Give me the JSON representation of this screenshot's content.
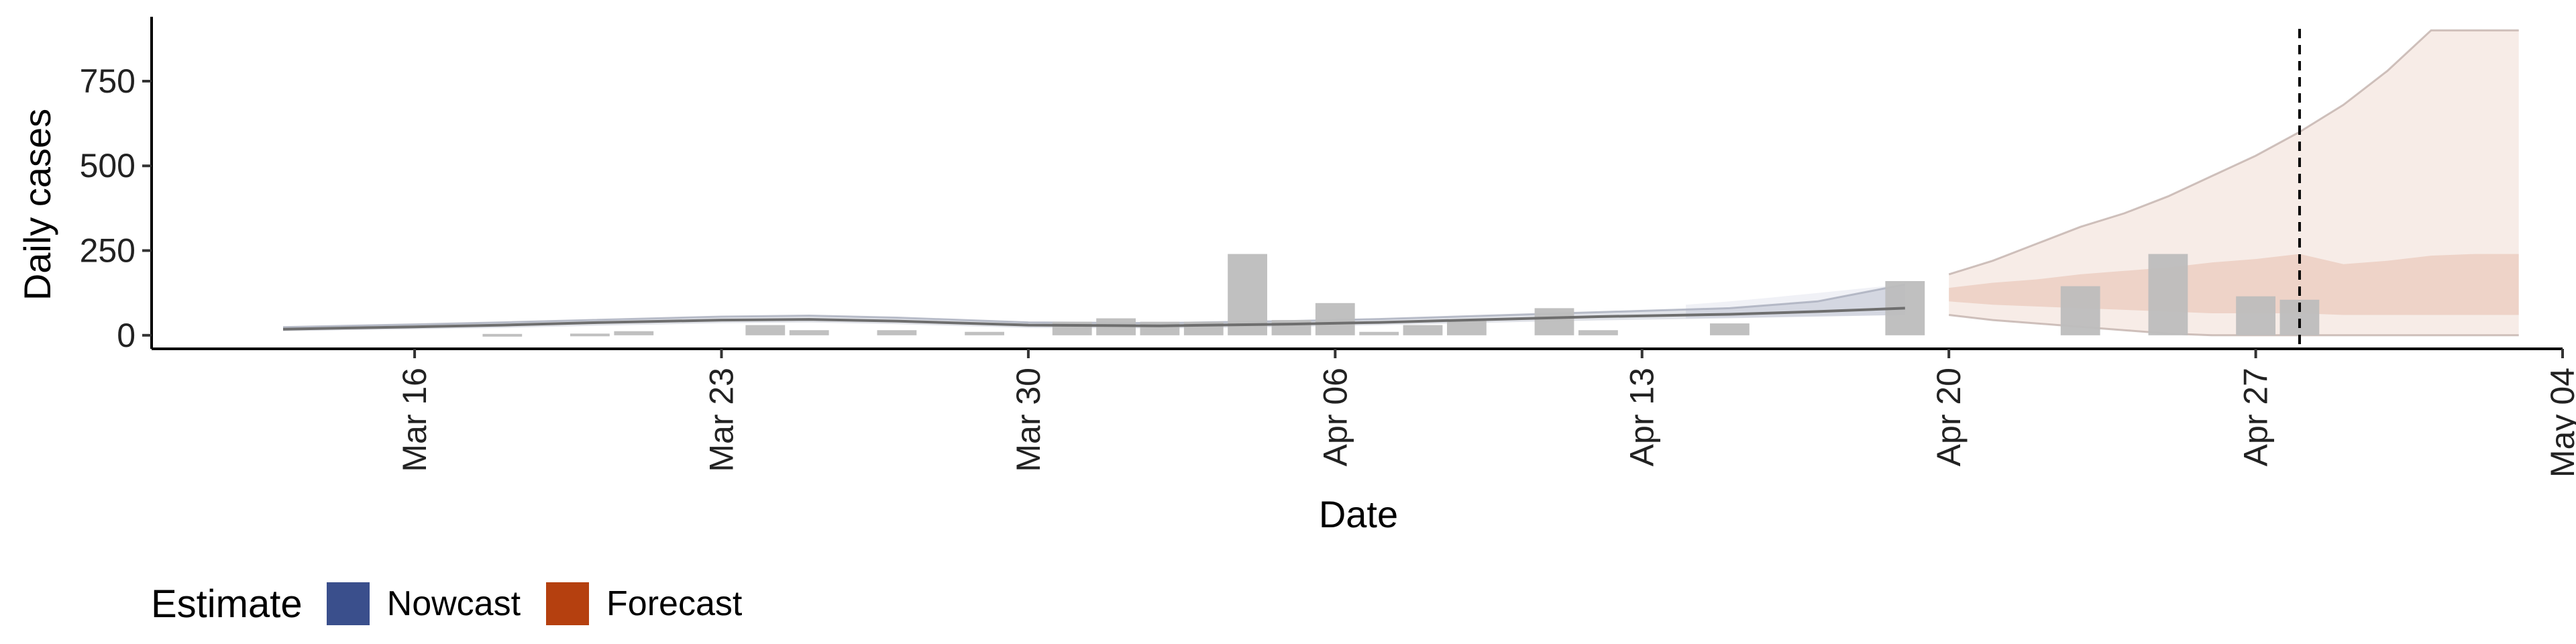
{
  "chart_data": {
    "type": "bar",
    "xlabel": "Date",
    "ylabel": "Daily cases",
    "xlim": [
      "2020-03-10",
      "2020-05-04"
    ],
    "ylim": [
      -40,
      940
    ],
    "x_ticks": [
      "2020-03-16",
      "2020-03-23",
      "2020-03-30",
      "2020-04-06",
      "2020-04-13",
      "2020-04-20",
      "2020-04-27",
      "2020-05-04"
    ],
    "x_tick_labels": [
      "Mar 16",
      "Mar 23",
      "Mar 30",
      "Apr 06",
      "Apr 13",
      "Apr 20",
      "Apr 27",
      "May 04"
    ],
    "y_ticks": [
      0,
      250,
      500,
      750
    ],
    "y_tick_labels": [
      "0",
      "250",
      "500",
      "750"
    ],
    "reference_line_date": "2020-04-28",
    "grid": false,
    "legend": {
      "title": "Estimate",
      "position": "bottom-left",
      "items": [
        {
          "label": "Nowcast",
          "color": "#3A4F8C"
        },
        {
          "label": "Forecast",
          "color": "#B5400F"
        }
      ]
    },
    "colors": {
      "bars": "#BDBDBD",
      "nowcast": "#3A4F8C",
      "forecast": "#B5400F",
      "median_line": "#6E6E6E"
    },
    "bars": [
      {
        "date": "2020-03-18",
        "value": 4
      },
      {
        "date": "2020-03-20",
        "value": 5
      },
      {
        "date": "2020-03-21",
        "value": 12
      },
      {
        "date": "2020-03-24",
        "value": 30
      },
      {
        "date": "2020-03-25",
        "value": 15
      },
      {
        "date": "2020-03-27",
        "value": 15
      },
      {
        "date": "2020-03-29",
        "value": 10
      },
      {
        "date": "2020-03-31",
        "value": 40
      },
      {
        "date": "2020-04-01",
        "value": 50
      },
      {
        "date": "2020-04-02",
        "value": 40
      },
      {
        "date": "2020-04-03",
        "value": 40
      },
      {
        "date": "2020-04-04",
        "value": 240
      },
      {
        "date": "2020-04-05",
        "value": 45
      },
      {
        "date": "2020-04-06",
        "value": 95
      },
      {
        "date": "2020-04-07",
        "value": 10
      },
      {
        "date": "2020-04-08",
        "value": 30
      },
      {
        "date": "2020-04-09",
        "value": 45
      },
      {
        "date": "2020-04-11",
        "value": 80
      },
      {
        "date": "2020-04-12",
        "value": 15
      },
      {
        "date": "2020-04-15",
        "value": 35
      },
      {
        "date": "2020-04-19",
        "value": 160
      },
      {
        "date": "2020-04-23",
        "value": 145
      },
      {
        "date": "2020-04-25",
        "value": 240
      },
      {
        "date": "2020-04-27",
        "value": 115
      },
      {
        "date": "2020-04-28",
        "value": 105
      }
    ],
    "estimate_median": {
      "dates": [
        "2020-03-13",
        "2020-03-16",
        "2020-03-18",
        "2020-03-20",
        "2020-03-23",
        "2020-03-25",
        "2020-03-27",
        "2020-03-30",
        "2020-04-02",
        "2020-04-05",
        "2020-04-07",
        "2020-04-09",
        "2020-04-12",
        "2020-04-15",
        "2020-04-17",
        "2020-04-19"
      ],
      "values": [
        18,
        25,
        30,
        37,
        45,
        47,
        42,
        30,
        28,
        33,
        38,
        45,
        55,
        62,
        70,
        80
      ]
    },
    "estimate_band": {
      "dates": [
        "2020-03-13",
        "2020-03-16",
        "2020-03-18",
        "2020-03-20",
        "2020-03-23",
        "2020-03-25",
        "2020-03-27",
        "2020-03-30",
        "2020-04-02",
        "2020-04-05",
        "2020-04-07",
        "2020-04-09",
        "2020-04-12",
        "2020-04-15",
        "2020-04-17",
        "2020-04-19"
      ],
      "lower": [
        12,
        18,
        22,
        28,
        36,
        38,
        33,
        22,
        20,
        25,
        30,
        36,
        44,
        50,
        55,
        60
      ],
      "upper": [
        24,
        32,
        38,
        45,
        55,
        58,
        52,
        38,
        36,
        42,
        48,
        56,
        68,
        80,
        100,
        150
      ]
    },
    "nowcast": {
      "dates": [
        "2020-04-14",
        "2020-04-15",
        "2020-04-16",
        "2020-04-17",
        "2020-04-18",
        "2020-04-19"
      ],
      "lower": [
        50,
        52,
        54,
        56,
        58,
        60
      ],
      "upper": [
        90,
        100,
        112,
        125,
        138,
        150
      ]
    },
    "forecast": {
      "dates": [
        "2020-04-20",
        "2020-04-21",
        "2020-04-22",
        "2020-04-23",
        "2020-04-24",
        "2020-04-25",
        "2020-04-26",
        "2020-04-27",
        "2020-04-28",
        "2020-04-29",
        "2020-04-30",
        "2020-05-01",
        "2020-05-02",
        "2020-05-03"
      ],
      "outer_lower": [
        60,
        45,
        35,
        25,
        15,
        5,
        0,
        0,
        0,
        0,
        0,
        0,
        0,
        0
      ],
      "outer_upper": [
        180,
        220,
        270,
        320,
        360,
        410,
        470,
        530,
        600,
        680,
        780,
        900,
        900,
        900
      ],
      "inner_lower": [
        100,
        90,
        85,
        80,
        75,
        70,
        65,
        65,
        65,
        60,
        60,
        60,
        60,
        60
      ],
      "inner_upper": [
        140,
        155,
        165,
        180,
        190,
        200,
        215,
        225,
        240,
        210,
        220,
        235,
        240,
        240
      ]
    }
  }
}
